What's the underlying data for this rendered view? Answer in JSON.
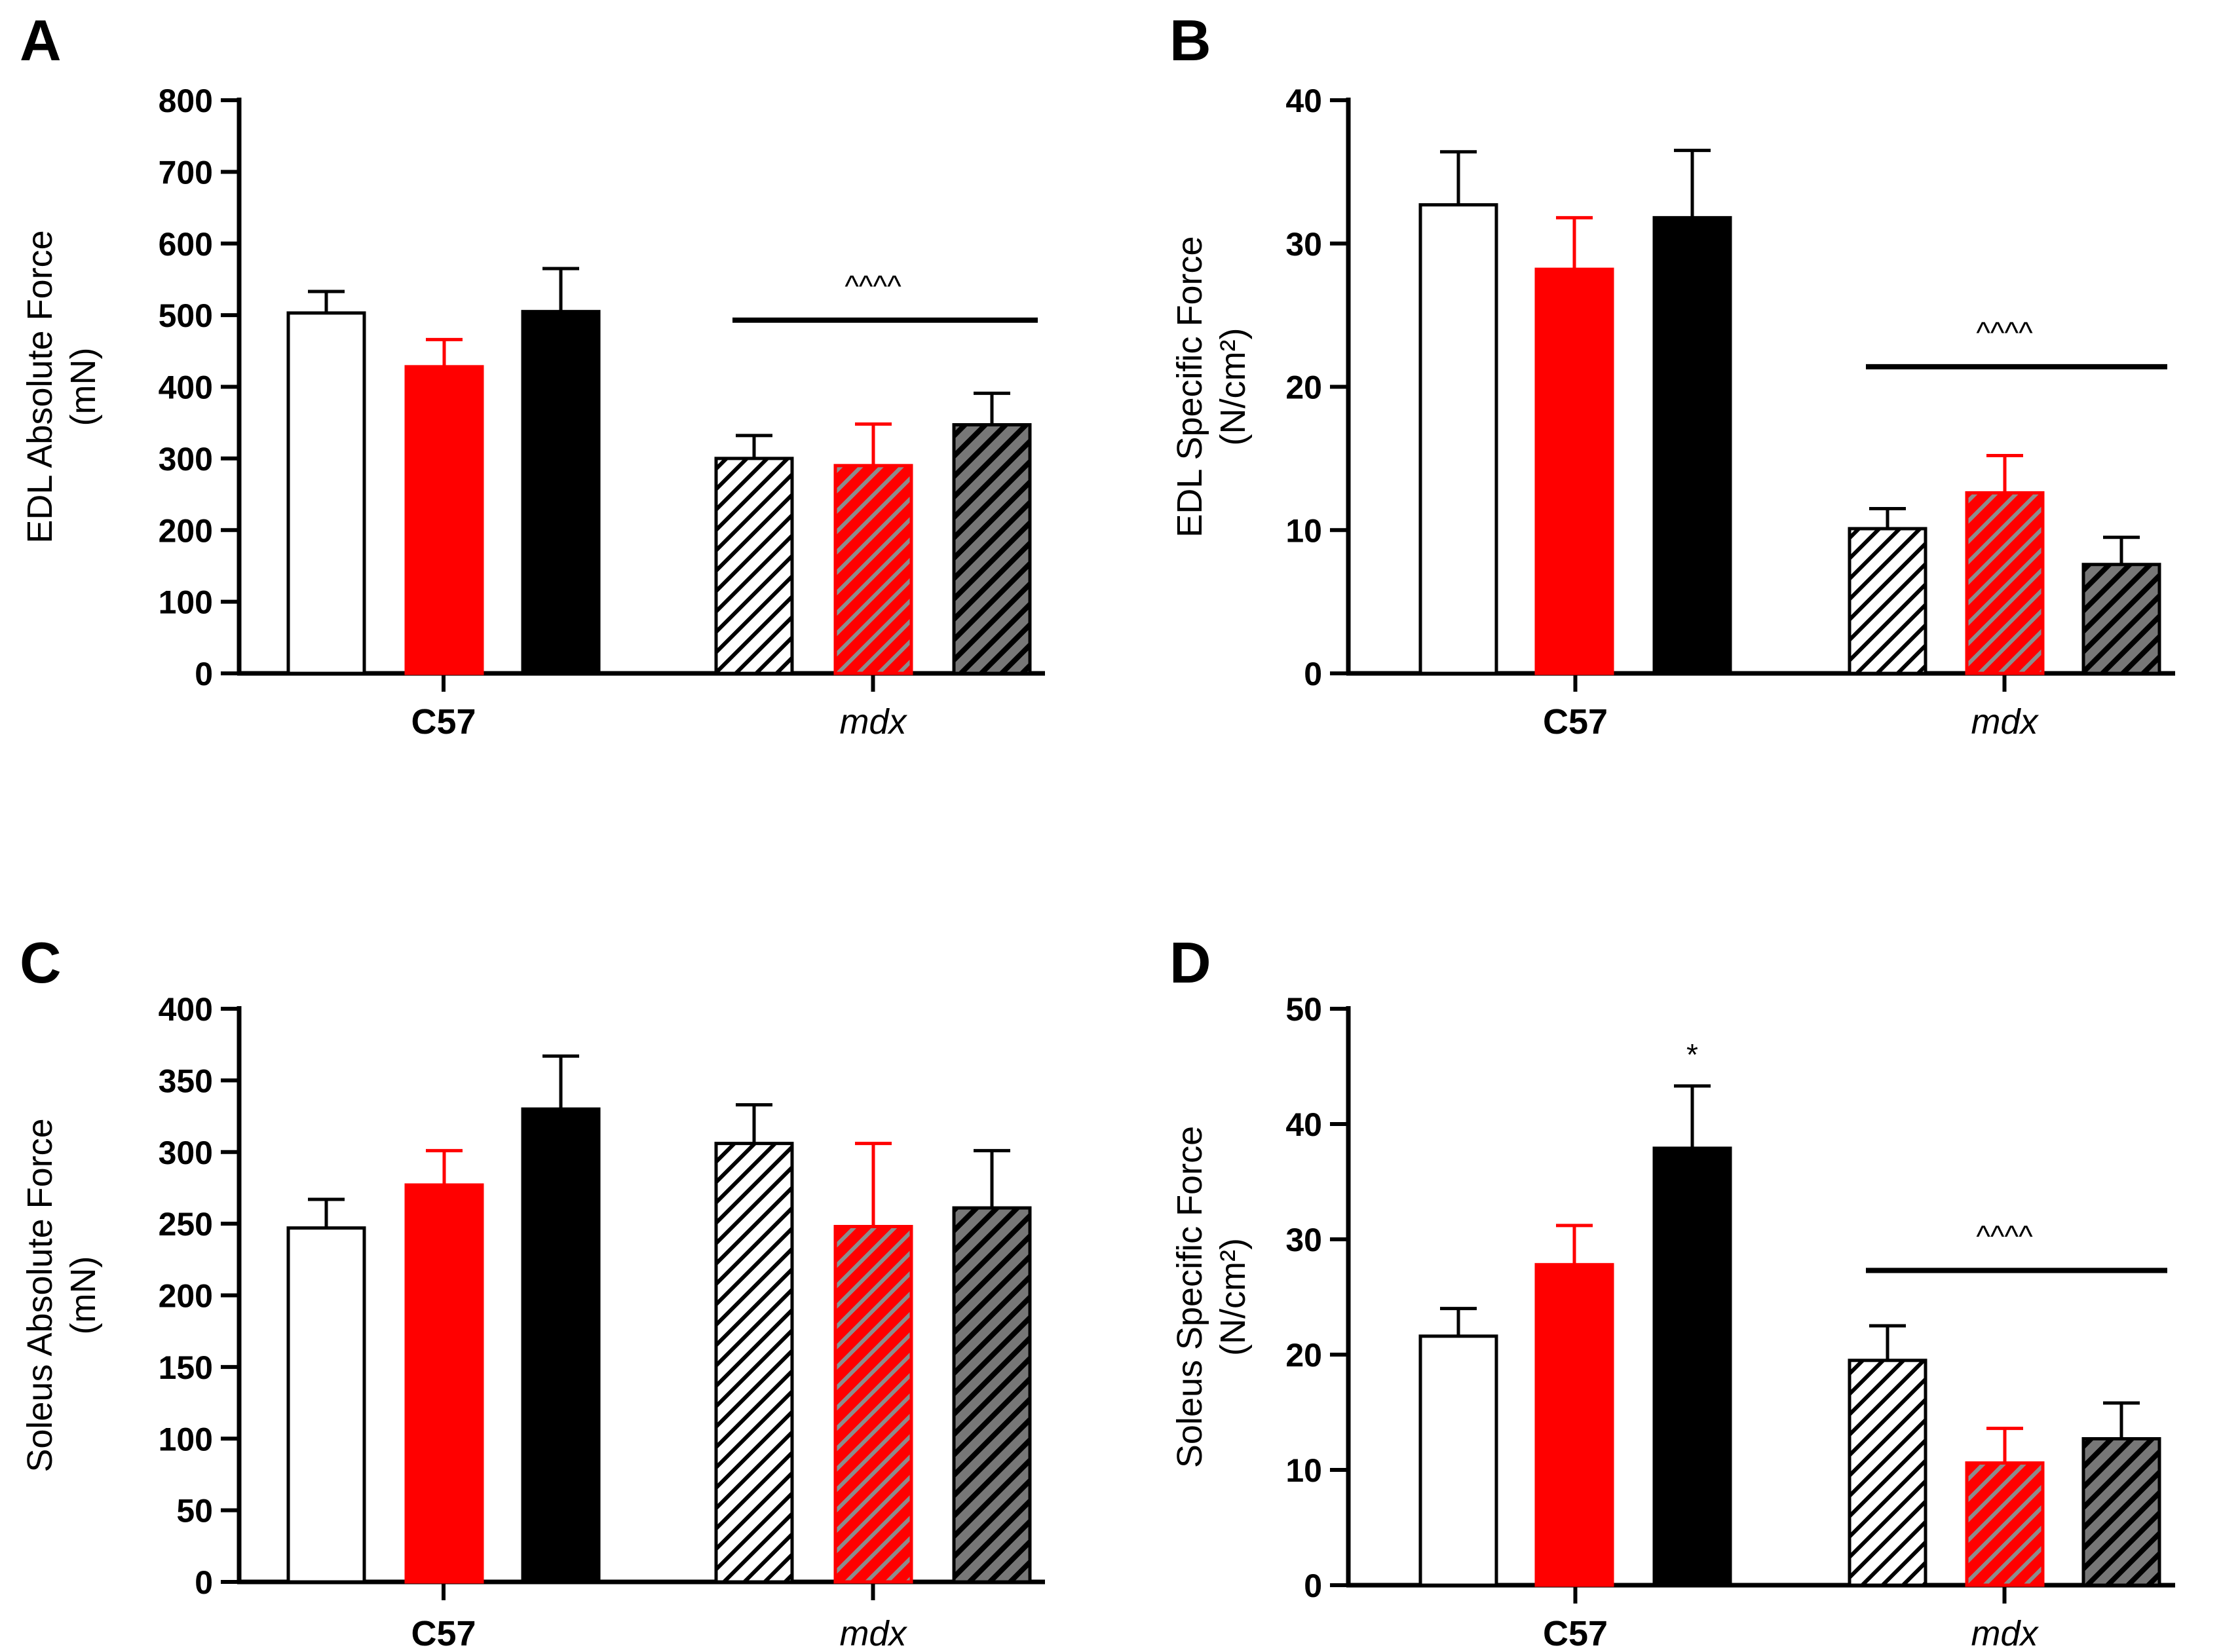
{
  "colors": {
    "black": "#000000",
    "red": "#ff0000",
    "white": "#ffffff",
    "hatch_red_line": "#8c8c8c",
    "hatch_dark_bg": "#777777"
  },
  "chart_data": [
    {
      "type": "bar",
      "panel": "A",
      "ylabel_lines": [
        "EDL Absolute Force",
        "(mN)"
      ],
      "ylim": [
        0,
        800
      ],
      "ticks": [
        0,
        100,
        200,
        300,
        400,
        500,
        600,
        700,
        800
      ],
      "groups": [
        {
          "label": "C57",
          "style": "bold",
          "bars": [
            {
              "name": "C57 bar 1",
              "fill": "white",
              "value": 503,
              "error": 30
            },
            {
              "name": "C57 bar 2",
              "fill": "red",
              "value": 428,
              "error": 38
            },
            {
              "name": "C57 bar 3",
              "fill": "black",
              "value": 505,
              "error": 60
            }
          ]
        },
        {
          "label": "mdx",
          "style": "italic",
          "bars": [
            {
              "name": "mdx bar 1",
              "fill": "hatch-white",
              "value": 300,
              "error": 32
            },
            {
              "name": "mdx bar 2",
              "fill": "hatch-red",
              "value": 290,
              "error": 58
            },
            {
              "name": "mdx bar 3",
              "fill": "hatch-dark",
              "value": 347,
              "error": 44
            }
          ]
        }
      ],
      "significance": {
        "group": 1,
        "text": "^^^^",
        "value": 493
      }
    },
    {
      "type": "bar",
      "panel": "B",
      "ylabel_lines": [
        "EDL Specific Force",
        "(N/cm²)"
      ],
      "ylim": [
        0,
        40
      ],
      "ticks": [
        0,
        10,
        20,
        30,
        40
      ],
      "groups": [
        {
          "label": "C57",
          "style": "bold",
          "bars": [
            {
              "name": "C57 bar 1",
              "fill": "white",
              "value": 32.7,
              "error": 3.7
            },
            {
              "name": "C57 bar 2",
              "fill": "red",
              "value": 28.2,
              "error": 3.6
            },
            {
              "name": "C57 bar 3",
              "fill": "black",
              "value": 31.8,
              "error": 4.7
            }
          ]
        },
        {
          "label": "mdx",
          "style": "italic",
          "bars": [
            {
              "name": "mdx bar 1",
              "fill": "hatch-white",
              "value": 10.1,
              "error": 1.4
            },
            {
              "name": "mdx bar 2",
              "fill": "hatch-red",
              "value": 12.6,
              "error": 2.6
            },
            {
              "name": "mdx bar 3",
              "fill": "hatch-dark",
              "value": 7.6,
              "error": 1.9
            }
          ]
        }
      ],
      "significance": {
        "group": 1,
        "text": "^^^^",
        "value": 21.4
      }
    },
    {
      "type": "bar",
      "panel": "C",
      "ylabel_lines": [
        "Soleus Absolute Force",
        "(mN)"
      ],
      "ylim": [
        0,
        400
      ],
      "ticks": [
        0,
        50,
        100,
        150,
        200,
        250,
        300,
        350,
        400
      ],
      "groups": [
        {
          "label": "C57",
          "style": "bold",
          "bars": [
            {
              "name": "C57 bar 1",
              "fill": "white",
              "value": 247,
              "error": 20
            },
            {
              "name": "C57 bar 2",
              "fill": "red",
              "value": 277,
              "error": 24
            },
            {
              "name": "C57 bar 3",
              "fill": "black",
              "value": 330,
              "error": 37
            }
          ]
        },
        {
          "label": "mdx",
          "style": "italic",
          "bars": [
            {
              "name": "mdx bar 1",
              "fill": "hatch-white",
              "value": 306,
              "error": 27
            },
            {
              "name": "mdx bar 2",
              "fill": "hatch-red",
              "value": 248,
              "error": 58
            },
            {
              "name": "mdx bar 3",
              "fill": "hatch-dark",
              "value": 261,
              "error": 40
            }
          ]
        }
      ],
      "significance": null
    },
    {
      "type": "bar",
      "panel": "D",
      "ylabel_lines": [
        "Soleus Specific Force",
        "(N/cm²)"
      ],
      "ylim": [
        0,
        50
      ],
      "ticks": [
        0,
        10,
        20,
        30,
        40,
        50
      ],
      "groups": [
        {
          "label": "C57",
          "style": "bold",
          "bars": [
            {
              "name": "C57 bar 1",
              "fill": "white",
              "value": 21.6,
              "error": 2.4
            },
            {
              "name": "C57 bar 2",
              "fill": "red",
              "value": 27.8,
              "error": 3.4
            },
            {
              "name": "C57 bar 3",
              "fill": "black",
              "value": 37.9,
              "error": 5.4,
              "marker": "*"
            }
          ]
        },
        {
          "label": "mdx",
          "style": "italic",
          "bars": [
            {
              "name": "mdx bar 1",
              "fill": "hatch-white",
              "value": 19.5,
              "error": 3.0
            },
            {
              "name": "mdx bar 2",
              "fill": "hatch-red",
              "value": 10.6,
              "error": 3.0
            },
            {
              "name": "mdx bar 3",
              "fill": "hatch-dark",
              "value": 12.7,
              "error": 3.1
            }
          ]
        }
      ],
      "significance": {
        "group": 1,
        "text": "^^^^",
        "value": 27.3
      }
    }
  ]
}
